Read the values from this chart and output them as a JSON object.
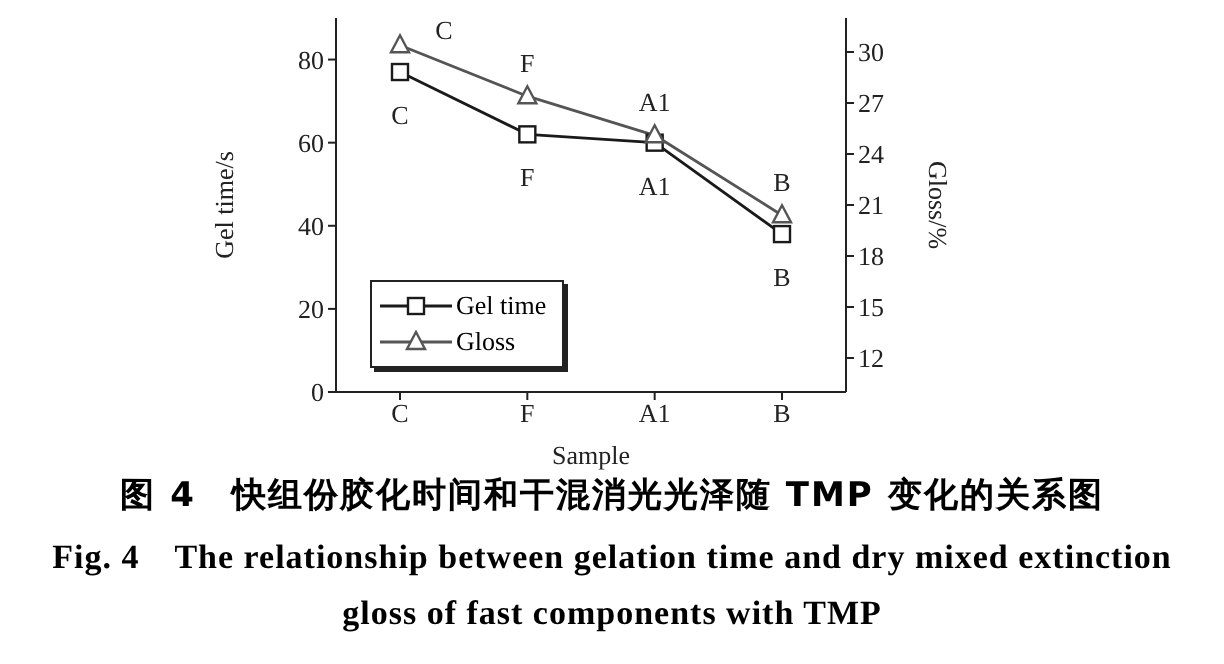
{
  "chart_data": {
    "type": "line",
    "title": "图 4　快组份胶化时间和干混消光光泽随 TMP 变化的关系图",
    "subtitle": "Fig. 4　The relationship between gelation time and dry mixed extinction gloss of fast components with TMP",
    "xlabel": "Sample",
    "ylabel": "Gel time/s",
    "y2label": "Gloss/%",
    "categories": [
      "C",
      "F",
      "A1",
      "B"
    ],
    "series": [
      {
        "name": "Gel time",
        "color": "#1a1a1a",
        "values": [
          77,
          62,
          60,
          38
        ],
        "marker": "square"
      },
      {
        "name": "Gloss",
        "color": "#555555",
        "values": [
          30.4,
          27.4,
          25.1,
          20.4
        ],
        "marker": "triangle",
        "axis": "y2"
      }
    ],
    "ylim": [
      0,
      90
    ],
    "yticks": [
      0,
      20,
      40,
      60,
      80
    ],
    "y2lim": [
      10,
      32
    ],
    "y2ticks": [
      12,
      15,
      18,
      21,
      24,
      27,
      30
    ],
    "legend": "bottom left",
    "grid": false,
    "annotations": [
      {
        "text": "C",
        "x": "C",
        "y": 77
      },
      {
        "text": "F",
        "x": "F",
        "y": 62
      },
      {
        "text": "A1",
        "x": "A1",
        "y": 60
      },
      {
        "text": "B",
        "x": "B",
        "y": 38
      },
      "C",
      "F",
      "A1",
      "B"
    ]
  }
}
